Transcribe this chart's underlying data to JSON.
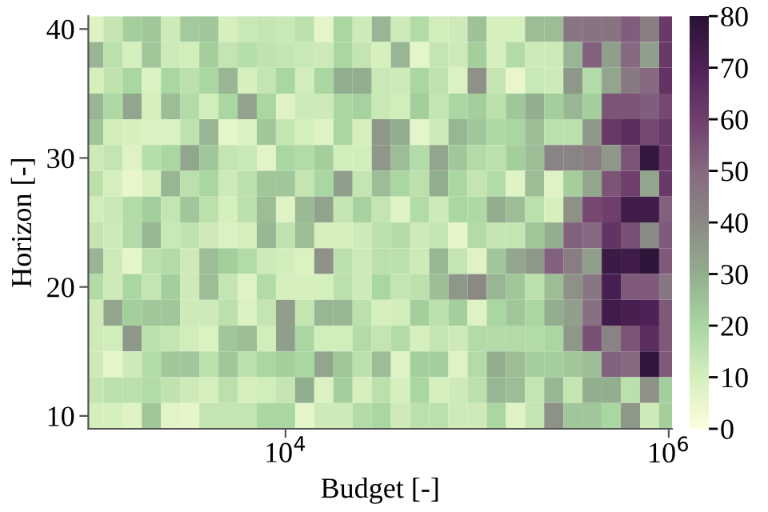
{
  "chart_data": {
    "type": "heatmap",
    "xlabel": "Budget [-]",
    "ylabel": "Horizon [-]",
    "log": "x",
    "x": [
      1000,
      1259,
      1585,
      1995,
      2512,
      3162,
      3981,
      5012,
      6310,
      7943,
      10000,
      12589,
      15849,
      19953,
      25119,
      31623,
      39811,
      50119,
      63096,
      79433,
      100000,
      125893,
      158489,
      199526,
      251189,
      316228,
      398107,
      501187,
      630957,
      794328,
      1000000
    ],
    "y": [
      40,
      38,
      36,
      34,
      32,
      30,
      28,
      26,
      24,
      22,
      20,
      18,
      16,
      14,
      12,
      10
    ],
    "xlim": [
      935,
      1040000
    ],
    "ylim": [
      9,
      41
    ],
    "xticks": [
      {
        "value": 10000,
        "label": "10$^{4}$"
      },
      {
        "value": 1000000,
        "label": "10$^{6}$"
      }
    ],
    "yticks": [
      10,
      20,
      30,
      40
    ],
    "clim": [
      0,
      80
    ],
    "cticks": [
      0,
      10,
      20,
      30,
      40,
      50,
      60,
      70,
      80
    ],
    "cells": [
      [
        8,
        14,
        22,
        24,
        12,
        23,
        24,
        10,
        13,
        14,
        13,
        16,
        6,
        20,
        12,
        28,
        12,
        18,
        11,
        12,
        25,
        10,
        10,
        26,
        26,
        46,
        47,
        47,
        53,
        44,
        62
      ],
      [
        28,
        16,
        10,
        24,
        12,
        11,
        22,
        14,
        17,
        15,
        14,
        13,
        12,
        20,
        14,
        10,
        28,
        6,
        14,
        12,
        22,
        10,
        18,
        12,
        12,
        28,
        52,
        34,
        50,
        34,
        62
      ],
      [
        10,
        15,
        20,
        9,
        20,
        16,
        20,
        28,
        10,
        14,
        20,
        11,
        20,
        30,
        30,
        13,
        12,
        20,
        15,
        9,
        38,
        14,
        5,
        13,
        12,
        36,
        18,
        32,
        45,
        50,
        64
      ],
      [
        28,
        19,
        32,
        10,
        26,
        18,
        11,
        20,
        33,
        20,
        8,
        12,
        12,
        20,
        21,
        13,
        11,
        22,
        14,
        20,
        22,
        16,
        24,
        30,
        22,
        28,
        22,
        55,
        55,
        53,
        58
      ],
      [
        24,
        11,
        10,
        9,
        9,
        15,
        28,
        6,
        9,
        24,
        14,
        10,
        8,
        20,
        10,
        36,
        30,
        6,
        12,
        28,
        24,
        19,
        20,
        26,
        16,
        16,
        36,
        62,
        66,
        58,
        62
      ],
      [
        12,
        14,
        8,
        17,
        20,
        32,
        24,
        14,
        13,
        7,
        20,
        18,
        22,
        11,
        11,
        36,
        26,
        18,
        32,
        24,
        18,
        16,
        22,
        26,
        42,
        42,
        44,
        36,
        55,
        77,
        62
      ],
      [
        16,
        10,
        5,
        10,
        28,
        16,
        20,
        12,
        16,
        24,
        24,
        14,
        20,
        34,
        14,
        26,
        20,
        16,
        30,
        20,
        14,
        18,
        8,
        26,
        8,
        22,
        32,
        55,
        60,
        32,
        62
      ],
      [
        11,
        13,
        18,
        22,
        14,
        24,
        16,
        10,
        16,
        26,
        8,
        27,
        33,
        14,
        21,
        14,
        8,
        18,
        12,
        20,
        19,
        30,
        26,
        16,
        10,
        38,
        58,
        60,
        74,
        74,
        52
      ],
      [
        14,
        12,
        18,
        28,
        13,
        15,
        12,
        9,
        10,
        28,
        15,
        26,
        10,
        10,
        12,
        16,
        18,
        12,
        14,
        6,
        18,
        14,
        14,
        24,
        30,
        52,
        50,
        64,
        56,
        40,
        54
      ],
      [
        28,
        12,
        6,
        16,
        18,
        12,
        26,
        22,
        18,
        12,
        11,
        9,
        38,
        16,
        12,
        16,
        16,
        12,
        28,
        14,
        8,
        24,
        32,
        36,
        52,
        44,
        34,
        75,
        74,
        79,
        54
      ],
      [
        18,
        12,
        20,
        14,
        22,
        12,
        26,
        14,
        8,
        18,
        10,
        10,
        10,
        16,
        12,
        20,
        14,
        16,
        26,
        36,
        40,
        28,
        24,
        16,
        26,
        38,
        46,
        72,
        54,
        54,
        46
      ],
      [
        12,
        32,
        22,
        24,
        24,
        12,
        12,
        16,
        9,
        14,
        34,
        14,
        28,
        28,
        16,
        10,
        11,
        22,
        16,
        22,
        8,
        20,
        24,
        20,
        30,
        34,
        48,
        74,
        72,
        70,
        54
      ],
      [
        12,
        11,
        36,
        16,
        14,
        11,
        9,
        24,
        26,
        11,
        34,
        20,
        11,
        11,
        18,
        14,
        18,
        10,
        14,
        12,
        18,
        18,
        18,
        18,
        20,
        36,
        56,
        42,
        55,
        66,
        54
      ],
      [
        12,
        6,
        12,
        18,
        24,
        24,
        16,
        24,
        16,
        20,
        22,
        20,
        32,
        24,
        16,
        26,
        8,
        22,
        22,
        8,
        18,
        30,
        26,
        22,
        22,
        24,
        26,
        52,
        50,
        78,
        54
      ],
      [
        14,
        16,
        16,
        18,
        15,
        12,
        10,
        16,
        10,
        11,
        14,
        30,
        9,
        22,
        10,
        16,
        10,
        20,
        10,
        12,
        16,
        28,
        26,
        14,
        28,
        14,
        30,
        30,
        16,
        38,
        22
      ],
      [
        10,
        10,
        8,
        24,
        7,
        6,
        14,
        14,
        14,
        20,
        20,
        6,
        12,
        12,
        18,
        20,
        12,
        16,
        16,
        12,
        12,
        20,
        8,
        14,
        38,
        24,
        24,
        20,
        36,
        12,
        22
      ]
    ]
  }
}
